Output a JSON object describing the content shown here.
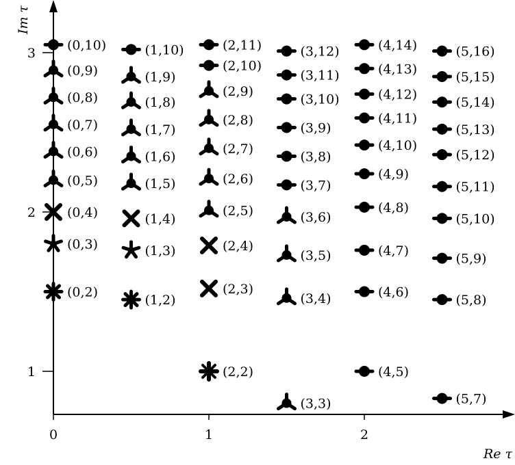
{
  "chart_data": {
    "type": "scatter",
    "xlabel": "Re τ",
    "ylabel": "Im τ",
    "x_ticks": [
      0,
      1,
      2
    ],
    "y_ticks": [
      1,
      2,
      3
    ],
    "xlim": [
      0,
      3
    ],
    "ylim": [
      0.7,
      3.3
    ],
    "grid": false,
    "legend": "none",
    "marker_glyphs": {
      "dumbbell": "horizontal bar with filled dot",
      "tripod": "three-legged mark",
      "cross": "bold X",
      "star5": "five-pointed star",
      "star8": "eight-pointed star",
      "plus": "bold plus"
    },
    "points": [
      {
        "x": 0,
        "y": 1.5,
        "label": "(0,2)",
        "marker": "star8"
      },
      {
        "x": 0,
        "y": 1.8,
        "label": "(0,3)",
        "marker": "star5"
      },
      {
        "x": 0,
        "y": 2.0,
        "label": "(0,4)",
        "marker": "cross"
      },
      {
        "x": 0,
        "y": 2.2,
        "label": "(0,5)",
        "marker": "tripod"
      },
      {
        "x": 0,
        "y": 2.38,
        "label": "(0,6)",
        "marker": "tripod"
      },
      {
        "x": 0,
        "y": 2.55,
        "label": "(0,7)",
        "marker": "tripod"
      },
      {
        "x": 0,
        "y": 2.72,
        "label": "(0,8)",
        "marker": "tripod"
      },
      {
        "x": 0,
        "y": 2.89,
        "label": "(0,9)",
        "marker": "tripod"
      },
      {
        "x": 0,
        "y": 3.05,
        "label": "(0,10)",
        "marker": "dumbbell"
      },
      {
        "x": 0.5,
        "y": 1.45,
        "label": "(1,2)",
        "marker": "star8"
      },
      {
        "x": 0.5,
        "y": 1.76,
        "label": "(1,3)",
        "marker": "star5"
      },
      {
        "x": 0.5,
        "y": 1.96,
        "label": "(1,4)",
        "marker": "cross"
      },
      {
        "x": 0.5,
        "y": 2.18,
        "label": "(1,5)",
        "marker": "tripod"
      },
      {
        "x": 0.5,
        "y": 2.35,
        "label": "(1,6)",
        "marker": "tripod"
      },
      {
        "x": 0.5,
        "y": 2.52,
        "label": "(1,7)",
        "marker": "tripod"
      },
      {
        "x": 0.5,
        "y": 2.69,
        "label": "(1,8)",
        "marker": "tripod"
      },
      {
        "x": 0.5,
        "y": 2.85,
        "label": "(1,9)",
        "marker": "tripod"
      },
      {
        "x": 0.5,
        "y": 3.02,
        "label": "(1,10)",
        "marker": "dumbbell"
      },
      {
        "x": 1,
        "y": 1.0,
        "label": "(2,2)",
        "marker": "plus"
      },
      {
        "x": 1,
        "y": 1.52,
        "label": "(2,3)",
        "marker": "cross"
      },
      {
        "x": 1,
        "y": 1.79,
        "label": "(2,4)",
        "marker": "cross"
      },
      {
        "x": 1,
        "y": 2.01,
        "label": "(2,5)",
        "marker": "tripod"
      },
      {
        "x": 1,
        "y": 2.21,
        "label": "(2,6)",
        "marker": "tripod"
      },
      {
        "x": 1,
        "y": 2.4,
        "label": "(2,7)",
        "marker": "tripod"
      },
      {
        "x": 1,
        "y": 2.58,
        "label": "(2,8)",
        "marker": "tripod"
      },
      {
        "x": 1,
        "y": 2.76,
        "label": "(2,9)",
        "marker": "tripod"
      },
      {
        "x": 1,
        "y": 2.92,
        "label": "(2,10)",
        "marker": "dumbbell"
      },
      {
        "x": 1,
        "y": 3.05,
        "label": "(2,11)",
        "marker": "dumbbell"
      },
      {
        "x": 1.5,
        "y": 0.8,
        "label": "(3,3)",
        "marker": "tripod"
      },
      {
        "x": 1.5,
        "y": 1.46,
        "label": "(3,4)",
        "marker": "tripod"
      },
      {
        "x": 1.5,
        "y": 1.73,
        "label": "(3,5)",
        "marker": "tripod"
      },
      {
        "x": 1.5,
        "y": 1.97,
        "label": "(3,6)",
        "marker": "tripod"
      },
      {
        "x": 1.5,
        "y": 2.17,
        "label": "(3,7)",
        "marker": "dumbbell"
      },
      {
        "x": 1.5,
        "y": 2.35,
        "label": "(3,8)",
        "marker": "dumbbell"
      },
      {
        "x": 1.5,
        "y": 2.53,
        "label": "(3,9)",
        "marker": "dumbbell"
      },
      {
        "x": 1.5,
        "y": 2.71,
        "label": "(3,10)",
        "marker": "dumbbell"
      },
      {
        "x": 1.5,
        "y": 2.86,
        "label": "(3,11)",
        "marker": "dumbbell"
      },
      {
        "x": 1.5,
        "y": 3.01,
        "label": "(3,12)",
        "marker": "dumbbell"
      },
      {
        "x": 2,
        "y": 1.0,
        "label": "(4,5)",
        "marker": "dumbbell"
      },
      {
        "x": 2,
        "y": 1.5,
        "label": "(4,6)",
        "marker": "dumbbell"
      },
      {
        "x": 2,
        "y": 1.76,
        "label": "(4,7)",
        "marker": "dumbbell"
      },
      {
        "x": 2,
        "y": 2.03,
        "label": "(4,8)",
        "marker": "dumbbell"
      },
      {
        "x": 2,
        "y": 2.24,
        "label": "(4,9)",
        "marker": "dumbbell"
      },
      {
        "x": 2,
        "y": 2.42,
        "label": "(4,10)",
        "marker": "dumbbell"
      },
      {
        "x": 2,
        "y": 2.59,
        "label": "(4,11)",
        "marker": "dumbbell"
      },
      {
        "x": 2,
        "y": 2.74,
        "label": "(4,12)",
        "marker": "dumbbell"
      },
      {
        "x": 2,
        "y": 2.9,
        "label": "(4,13)",
        "marker": "dumbbell"
      },
      {
        "x": 2,
        "y": 3.05,
        "label": "(4,14)",
        "marker": "dumbbell"
      },
      {
        "x": 2.5,
        "y": 0.83,
        "label": "(5,7)",
        "marker": "dumbbell"
      },
      {
        "x": 2.5,
        "y": 1.45,
        "label": "(5,8)",
        "marker": "dumbbell"
      },
      {
        "x": 2.5,
        "y": 1.71,
        "label": "(5,9)",
        "marker": "dumbbell"
      },
      {
        "x": 2.5,
        "y": 1.96,
        "label": "(5,10)",
        "marker": "dumbbell"
      },
      {
        "x": 2.5,
        "y": 2.16,
        "label": "(5,11)",
        "marker": "dumbbell"
      },
      {
        "x": 2.5,
        "y": 2.36,
        "label": "(5,12)",
        "marker": "dumbbell"
      },
      {
        "x": 2.5,
        "y": 2.52,
        "label": "(5,13)",
        "marker": "dumbbell"
      },
      {
        "x": 2.5,
        "y": 2.69,
        "label": "(5,14)",
        "marker": "dumbbell"
      },
      {
        "x": 2.5,
        "y": 2.85,
        "label": "(5,15)",
        "marker": "dumbbell"
      },
      {
        "x": 2.5,
        "y": 3.01,
        "label": "(5,16)",
        "marker": "dumbbell"
      }
    ]
  }
}
